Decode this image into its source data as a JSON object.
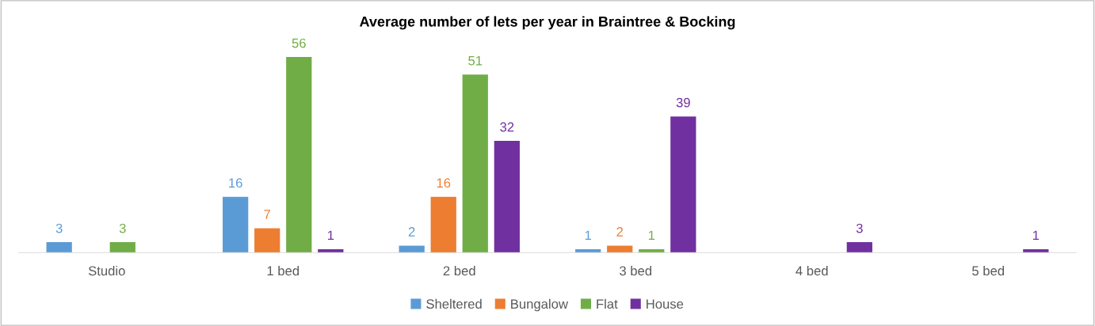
{
  "chart_data": {
    "type": "bar",
    "title": "Average number of lets per year in Braintree & Bocking",
    "categories": [
      "Studio",
      "1 bed",
      "2 bed",
      "3 bed",
      "4 bed",
      "5 bed"
    ],
    "series": [
      {
        "name": "Sheltered",
        "color": "#5b9bd5",
        "values": [
          3,
          16,
          2,
          1,
          null,
          null
        ]
      },
      {
        "name": "Bungalow",
        "color": "#ed7d31",
        "values": [
          null,
          7,
          16,
          2,
          null,
          null
        ]
      },
      {
        "name": "Flat",
        "color": "#70ad47",
        "values": [
          3,
          56,
          51,
          1,
          null,
          null
        ]
      },
      {
        "name": "House",
        "color": "#7030a0",
        "values": [
          null,
          1,
          32,
          39,
          3,
          1
        ]
      }
    ],
    "data_labels": true,
    "legend": "bottom"
  }
}
